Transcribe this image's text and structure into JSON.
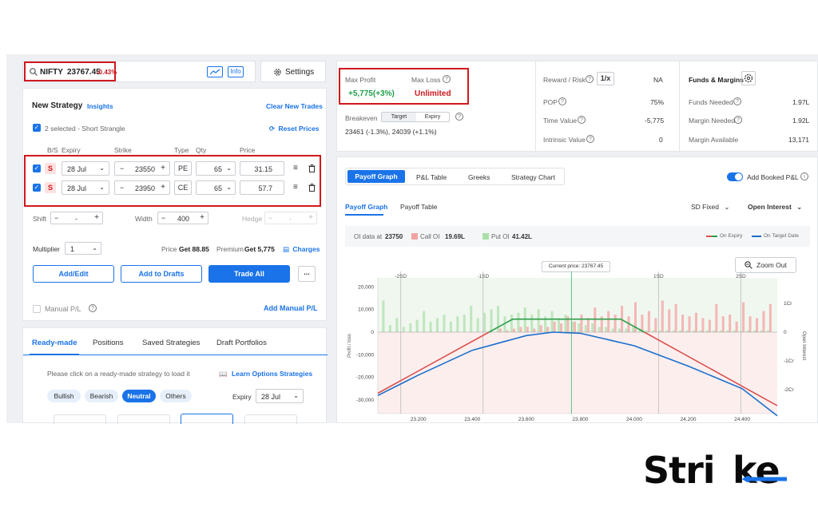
{
  "header": {
    "symbol": "NIFTY",
    "price": "23767.45",
    "change": "-0.43%",
    "info_label": "Info",
    "settings_label": "Settings"
  },
  "strategy": {
    "title": "New Strategy",
    "insights": "Insights",
    "clear": "Clear New Trades",
    "selected": "2 selected - Short Strangle",
    "reset": "Reset Prices",
    "cols": {
      "bs": "B/S",
      "expiry": "Expiry",
      "strike": "Strike",
      "type": "Type",
      "qty": "Qty",
      "price": "Price"
    },
    "legs": [
      {
        "bs": "S",
        "expiry": "28 Jul",
        "strike": "23550",
        "type": "PE",
        "qty": "65",
        "price": "31.15"
      },
      {
        "bs": "S",
        "expiry": "28 Jul",
        "strike": "23950",
        "type": "CE",
        "qty": "65",
        "price": "57.7"
      }
    ],
    "shift_label": "Shift",
    "shift_value": "-",
    "width_label": "Width",
    "width_value": "400",
    "hedge_label": "Hedge",
    "hedge_value": "-",
    "multiplier_label": "Multiplier",
    "multiplier_value": "1",
    "price_label": "Price",
    "price_value": "Get 88.85",
    "premium_label": "Premium",
    "premium_value": "Get 5,775",
    "charges": "Charges",
    "add_edit": "Add/Edit",
    "add_drafts": "Add to Drafts",
    "trade_all": "Trade All",
    "more": "...",
    "manual_pl": "Manual P/L",
    "add_manual_pl": "Add Manual P/L"
  },
  "bottom_tabs": [
    "Ready-made",
    "Positions",
    "Saved Strategies",
    "Draft Portfolios"
  ],
  "readymade": {
    "hint": "Please click on a ready-made strategy to load it",
    "learn": "Learn Options Strategies",
    "filters": [
      "Bullish",
      "Bearish",
      "Neutral",
      "Others"
    ],
    "expiry_label": "Expiry",
    "expiry_value": "28 Jul"
  },
  "summary": {
    "max_profit_label": "Max Profit",
    "max_profit_value": "+5,775(+3%)",
    "max_loss_label": "Max Loss",
    "max_loss_value": "Unlimited",
    "breakeven_label": "Breakeven",
    "be_target": "Target",
    "be_expiry": "Expiry",
    "breakeven_value": "23461 (-1.3%), 24039 (+1.1%)",
    "reward_risk_label": "Reward / Risk",
    "reward_risk_btn": "1/x",
    "reward_risk_value": "NA",
    "pop_label": "POP",
    "pop_value": "75%",
    "time_value_label": "Time Value",
    "time_value_value": "-5,775",
    "intrinsic_label": "Intrinsic Value",
    "intrinsic_value": "0",
    "funds_title": "Funds & Margins",
    "funds_needed_label": "Funds Needed",
    "funds_needed_value": "1.97L",
    "margin_needed_label": "Margin Needed",
    "margin_needed_value": "1.92L",
    "margin_available_label": "Margin Available",
    "margin_available_value": "13,171"
  },
  "graph": {
    "tabs": [
      "Payoff Graph",
      "P&L Table",
      "Greeks",
      "Strategy Chart"
    ],
    "add_booked": "Add Booked P&L",
    "subtabs": [
      "Payoff Graph",
      "Payoff Table"
    ],
    "sd_fixed": "SD Fixed",
    "open_interest": "Open Interest",
    "oi_data_label": "OI data at",
    "oi_data_strike": "23750",
    "call_oi_label": "Call OI",
    "call_oi_value": "19.69L",
    "put_oi_label": "Put OI",
    "put_oi_value": "41.42L",
    "legend_expiry": "On Expiry",
    "legend_target": "On Target Date",
    "current_price": "Current price: 23767.45",
    "zoom_out": "Zoom Out",
    "sd_labels": [
      "-2SD",
      "-1SD",
      "1SD",
      "2SD"
    ],
    "y_ticks": [
      "20,000",
      "10,000",
      "0",
      "-10,000",
      "-20,000",
      "-30,000"
    ],
    "x_ticks": [
      "23.200",
      "23.400",
      "23.600",
      "23.800",
      "24.000",
      "24.200",
      "24.400"
    ],
    "right_ticks": [
      "1Cr",
      "0",
      "-1Cr",
      "-2Cr"
    ],
    "ylabel": "Profit / loss",
    "right_label": "Open Interest"
  },
  "chart_data": {
    "type": "line",
    "x_range": [
      23050,
      24530
    ],
    "ylim": [
      -36000,
      24000
    ],
    "series": [
      {
        "name": "On Expiry",
        "points": [
          [
            23050,
            -27000
          ],
          [
            23550,
            5775
          ],
          [
            23950,
            5775
          ],
          [
            24530,
            -32500
          ]
        ]
      },
      {
        "name": "On Target Date",
        "points": [
          [
            23050,
            -28000
          ],
          [
            23200,
            -19000
          ],
          [
            23400,
            -8000
          ],
          [
            23600,
            -1500
          ],
          [
            23700,
            0
          ],
          [
            23800,
            -500
          ],
          [
            24000,
            -6000
          ],
          [
            24200,
            -15000
          ],
          [
            24400,
            -25000
          ],
          [
            24530,
            -37000
          ]
        ]
      }
    ],
    "oi_bars": {
      "strikes": [
        23075,
        23100,
        23125,
        23150,
        23175,
        23200,
        23225,
        23250,
        23275,
        23300,
        23325,
        23350,
        23375,
        23400,
        23425,
        23450,
        23475,
        23500,
        23525,
        23550,
        23575,
        23600,
        23625,
        23650,
        23675,
        23700,
        23725,
        23750,
        23775,
        23800,
        23825,
        23850,
        23875,
        23900,
        23925,
        23950,
        23975,
        24000,
        24025,
        24050,
        24075,
        24100,
        24125,
        24150,
        24175,
        24200,
        24225,
        24250,
        24275,
        24300,
        24325,
        24350,
        24375,
        24400,
        24425,
        24450,
        24475,
        24500
      ],
      "put": [
        1.8,
        0.4,
        0.8,
        0.3,
        0.5,
        0.7,
        1.2,
        0.6,
        0.8,
        1.0,
        0.6,
        0.9,
        1.0,
        1.5,
        0.8,
        1.1,
        1.3,
        1.5,
        0.9,
        1.0,
        1.1,
        1.4,
        1.0,
        1.3,
        0.9,
        1.2,
        0.8,
        1.0,
        0.6,
        0.5,
        0.4,
        0.5,
        0.3,
        0.3,
        0.2,
        0.2,
        0.2,
        0.3,
        0.2,
        0.1,
        0.1,
        0.1,
        0.1,
        0.1,
        0.1,
        0.1,
        0.1,
        0.1,
        0.1,
        0.1,
        0.1,
        0.1,
        0.1,
        0.1,
        0.1,
        0.1,
        0.1,
        0.1
      ],
      "call": [
        0,
        0,
        0,
        0,
        0,
        0,
        0,
        0,
        0,
        0,
        0,
        0,
        0,
        0,
        0,
        0,
        0,
        0.2,
        0.1,
        0.2,
        0.3,
        0.3,
        0.2,
        0.4,
        0.3,
        0.6,
        0.5,
        0.9,
        0.6,
        1.0,
        0.8,
        1.4,
        0.9,
        1.2,
        1.0,
        1.5,
        0.9,
        1.7,
        1.0,
        1.2,
        0.8,
        1.8,
        1.3,
        1.6,
        1.0,
        0.9,
        1.1,
        0.8,
        0.7,
        1.6,
        0.9,
        1.0,
        0.6,
        1.7,
        0.9,
        0.8,
        1.2,
        1.6
      ]
    }
  },
  "brand": {
    "name_left": "Stri",
    "name_right": "ke"
  }
}
